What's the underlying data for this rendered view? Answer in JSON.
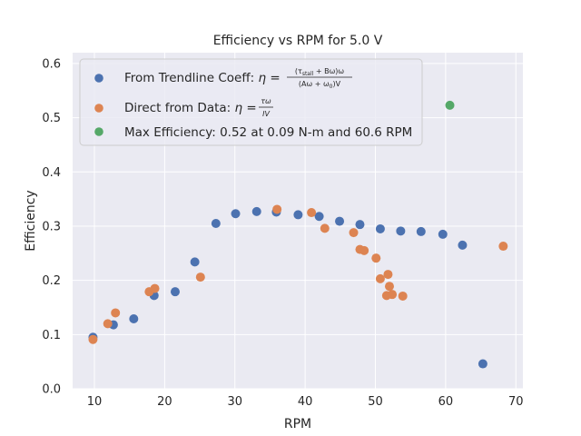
{
  "chart_data": {
    "type": "scatter",
    "title": "Efficiency vs RPM for 5.0 V",
    "xlabel": "RPM",
    "ylabel": "Efficiency",
    "xlim": [
      6.9,
      71.0
    ],
    "ylim": [
      0.0,
      0.62
    ],
    "xticks": [
      "10",
      "20",
      "30",
      "40",
      "50",
      "60",
      "70"
    ],
    "yticks": [
      "0.0",
      "0.1",
      "0.2",
      "0.3",
      "0.4",
      "0.5",
      "0.6"
    ],
    "grid": true,
    "legend_position": "upper-left",
    "series": [
      {
        "name": "From Trendline Coeff: η = (τstall + Bω)ω / (Aω + ω0)V",
        "color": "#4c72b0",
        "x": [
          9.8,
          12.7,
          15.6,
          18.5,
          21.5,
          24.3,
          27.3,
          30.1,
          33.1,
          35.9,
          39.0,
          42.0,
          44.9,
          47.8,
          50.7,
          53.6,
          56.5,
          59.6,
          62.4,
          65.3
        ],
        "y": [
          0.095,
          0.118,
          0.129,
          0.172,
          0.179,
          0.234,
          0.305,
          0.323,
          0.327,
          0.326,
          0.321,
          0.318,
          0.309,
          0.303,
          0.295,
          0.291,
          0.29,
          0.285,
          0.265,
          0.046
        ]
      },
      {
        "name": "Direct from Data: η = τω / IV",
        "color": "#dd8452",
        "x": [
          9.8,
          11.9,
          13.0,
          17.8,
          18.6,
          25.1,
          36.0,
          40.9,
          42.8,
          46.9,
          47.8,
          48.4,
          50.1,
          50.7,
          51.6,
          51.8,
          52.0,
          52.4,
          53.9,
          68.2
        ],
        "y": [
          0.091,
          0.12,
          0.14,
          0.179,
          0.185,
          0.206,
          0.331,
          0.325,
          0.296,
          0.288,
          0.257,
          0.255,
          0.241,
          0.203,
          0.172,
          0.211,
          0.189,
          0.174,
          0.171,
          0.263
        ]
      },
      {
        "name": "Max Efficiency: 0.52 at 0.09 N-m and 60.6 RPM",
        "color": "#55a868",
        "x": [
          60.6
        ],
        "y": [
          0.523
        ]
      }
    ]
  },
  "legend": {
    "s1_prefix": "From Trendline Coeff: ",
    "s1_eta": "η = ",
    "s1_num": "(τ",
    "s1_num_sub": "stall",
    "s1_num_rest": " + Bω)ω",
    "s1_den": "(Aω + ω",
    "s1_den_sub": "0",
    "s1_den_rest": ")V",
    "s2_prefix": "Direct from Data: ",
    "s2_eta": "η = ",
    "s2_num": "τω",
    "s2_den": "IV",
    "s3_label": "Max Efficiency: 0.52 at 0.09 N-m and 60.6 RPM"
  },
  "colors": {
    "background": "#ffffff",
    "plot_area": "#eaeaf2",
    "grid": "#ffffff"
  }
}
